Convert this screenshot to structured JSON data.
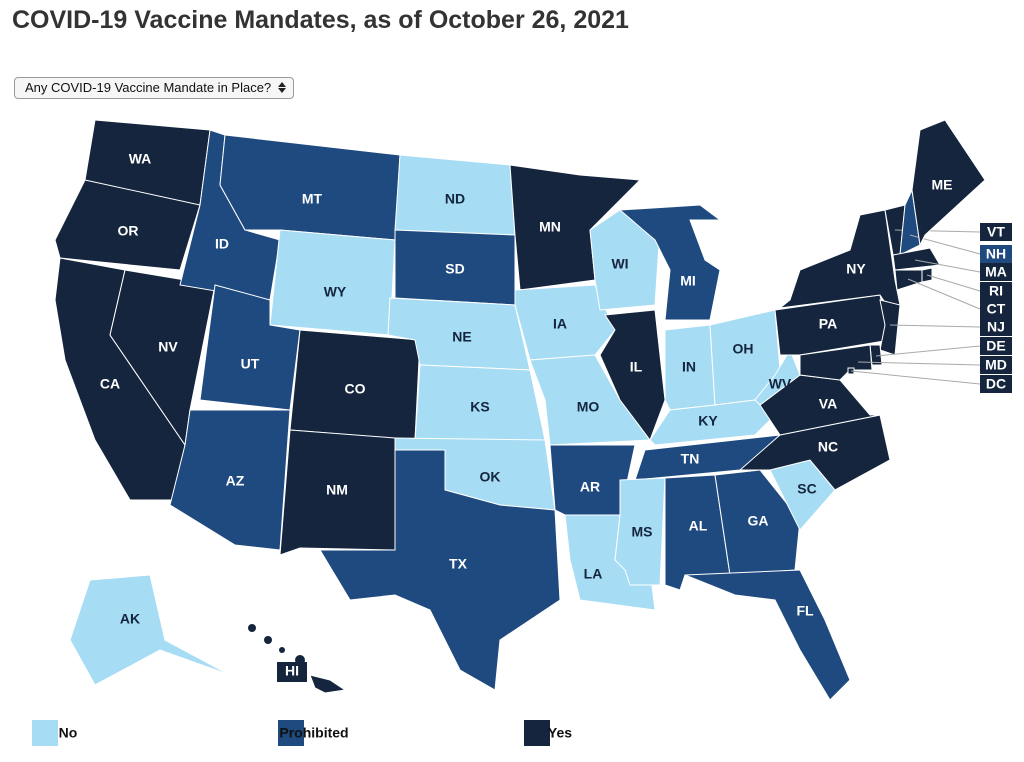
{
  "title": "COVID-19 Vaccine Mandates, as of October 26, 2021",
  "dropdown": "Any COVID-19 Vaccine Mandate in Place?",
  "legend": [
    {
      "label": "No",
      "color": "#a6dcf4"
    },
    {
      "label": "Prohibited",
      "color": "#1f4a80"
    },
    {
      "label": "Yes",
      "color": "#14253d"
    }
  ],
  "states": [
    {
      "abbr": "WA",
      "status": "Yes"
    },
    {
      "abbr": "OR",
      "status": "Yes"
    },
    {
      "abbr": "CA",
      "status": "Yes"
    },
    {
      "abbr": "NV",
      "status": "Yes"
    },
    {
      "abbr": "ID",
      "status": "Prohibited"
    },
    {
      "abbr": "MT",
      "status": "Prohibited"
    },
    {
      "abbr": "WY",
      "status": "No"
    },
    {
      "abbr": "UT",
      "status": "Prohibited"
    },
    {
      "abbr": "AZ",
      "status": "Prohibited"
    },
    {
      "abbr": "CO",
      "status": "Yes"
    },
    {
      "abbr": "NM",
      "status": "Yes"
    },
    {
      "abbr": "ND",
      "status": "No"
    },
    {
      "abbr": "SD",
      "status": "Prohibited"
    },
    {
      "abbr": "NE",
      "status": "No"
    },
    {
      "abbr": "KS",
      "status": "No"
    },
    {
      "abbr": "OK",
      "status": "No"
    },
    {
      "abbr": "TX",
      "status": "Prohibited"
    },
    {
      "abbr": "MN",
      "status": "Yes"
    },
    {
      "abbr": "IA",
      "status": "No"
    },
    {
      "abbr": "MO",
      "status": "No"
    },
    {
      "abbr": "AR",
      "status": "Prohibited"
    },
    {
      "abbr": "LA",
      "status": "No"
    },
    {
      "abbr": "WI",
      "status": "No"
    },
    {
      "abbr": "IL",
      "status": "Yes"
    },
    {
      "abbr": "MI",
      "status": "Prohibited"
    },
    {
      "abbr": "IN",
      "status": "No"
    },
    {
      "abbr": "OH",
      "status": "No"
    },
    {
      "abbr": "KY",
      "status": "No"
    },
    {
      "abbr": "TN",
      "status": "Prohibited"
    },
    {
      "abbr": "MS",
      "status": "No"
    },
    {
      "abbr": "AL",
      "status": "Prohibited"
    },
    {
      "abbr": "GA",
      "status": "Prohibited"
    },
    {
      "abbr": "FL",
      "status": "Prohibited"
    },
    {
      "abbr": "SC",
      "status": "No"
    },
    {
      "abbr": "NC",
      "status": "Yes"
    },
    {
      "abbr": "VA",
      "status": "Yes"
    },
    {
      "abbr": "WV",
      "status": "No"
    },
    {
      "abbr": "PA",
      "status": "Yes"
    },
    {
      "abbr": "NY",
      "status": "Yes"
    },
    {
      "abbr": "VT",
      "status": "Yes"
    },
    {
      "abbr": "NH",
      "status": "Prohibited"
    },
    {
      "abbr": "ME",
      "status": "Yes"
    },
    {
      "abbr": "MA",
      "status": "Yes"
    },
    {
      "abbr": "RI",
      "status": "Yes"
    },
    {
      "abbr": "CT",
      "status": "Yes"
    },
    {
      "abbr": "NJ",
      "status": "Yes"
    },
    {
      "abbr": "DE",
      "status": "Yes"
    },
    {
      "abbr": "MD",
      "status": "Yes"
    },
    {
      "abbr": "DC",
      "status": "Yes"
    },
    {
      "abbr": "AK",
      "status": "No"
    },
    {
      "abbr": "HI",
      "status": "Yes"
    }
  ]
}
